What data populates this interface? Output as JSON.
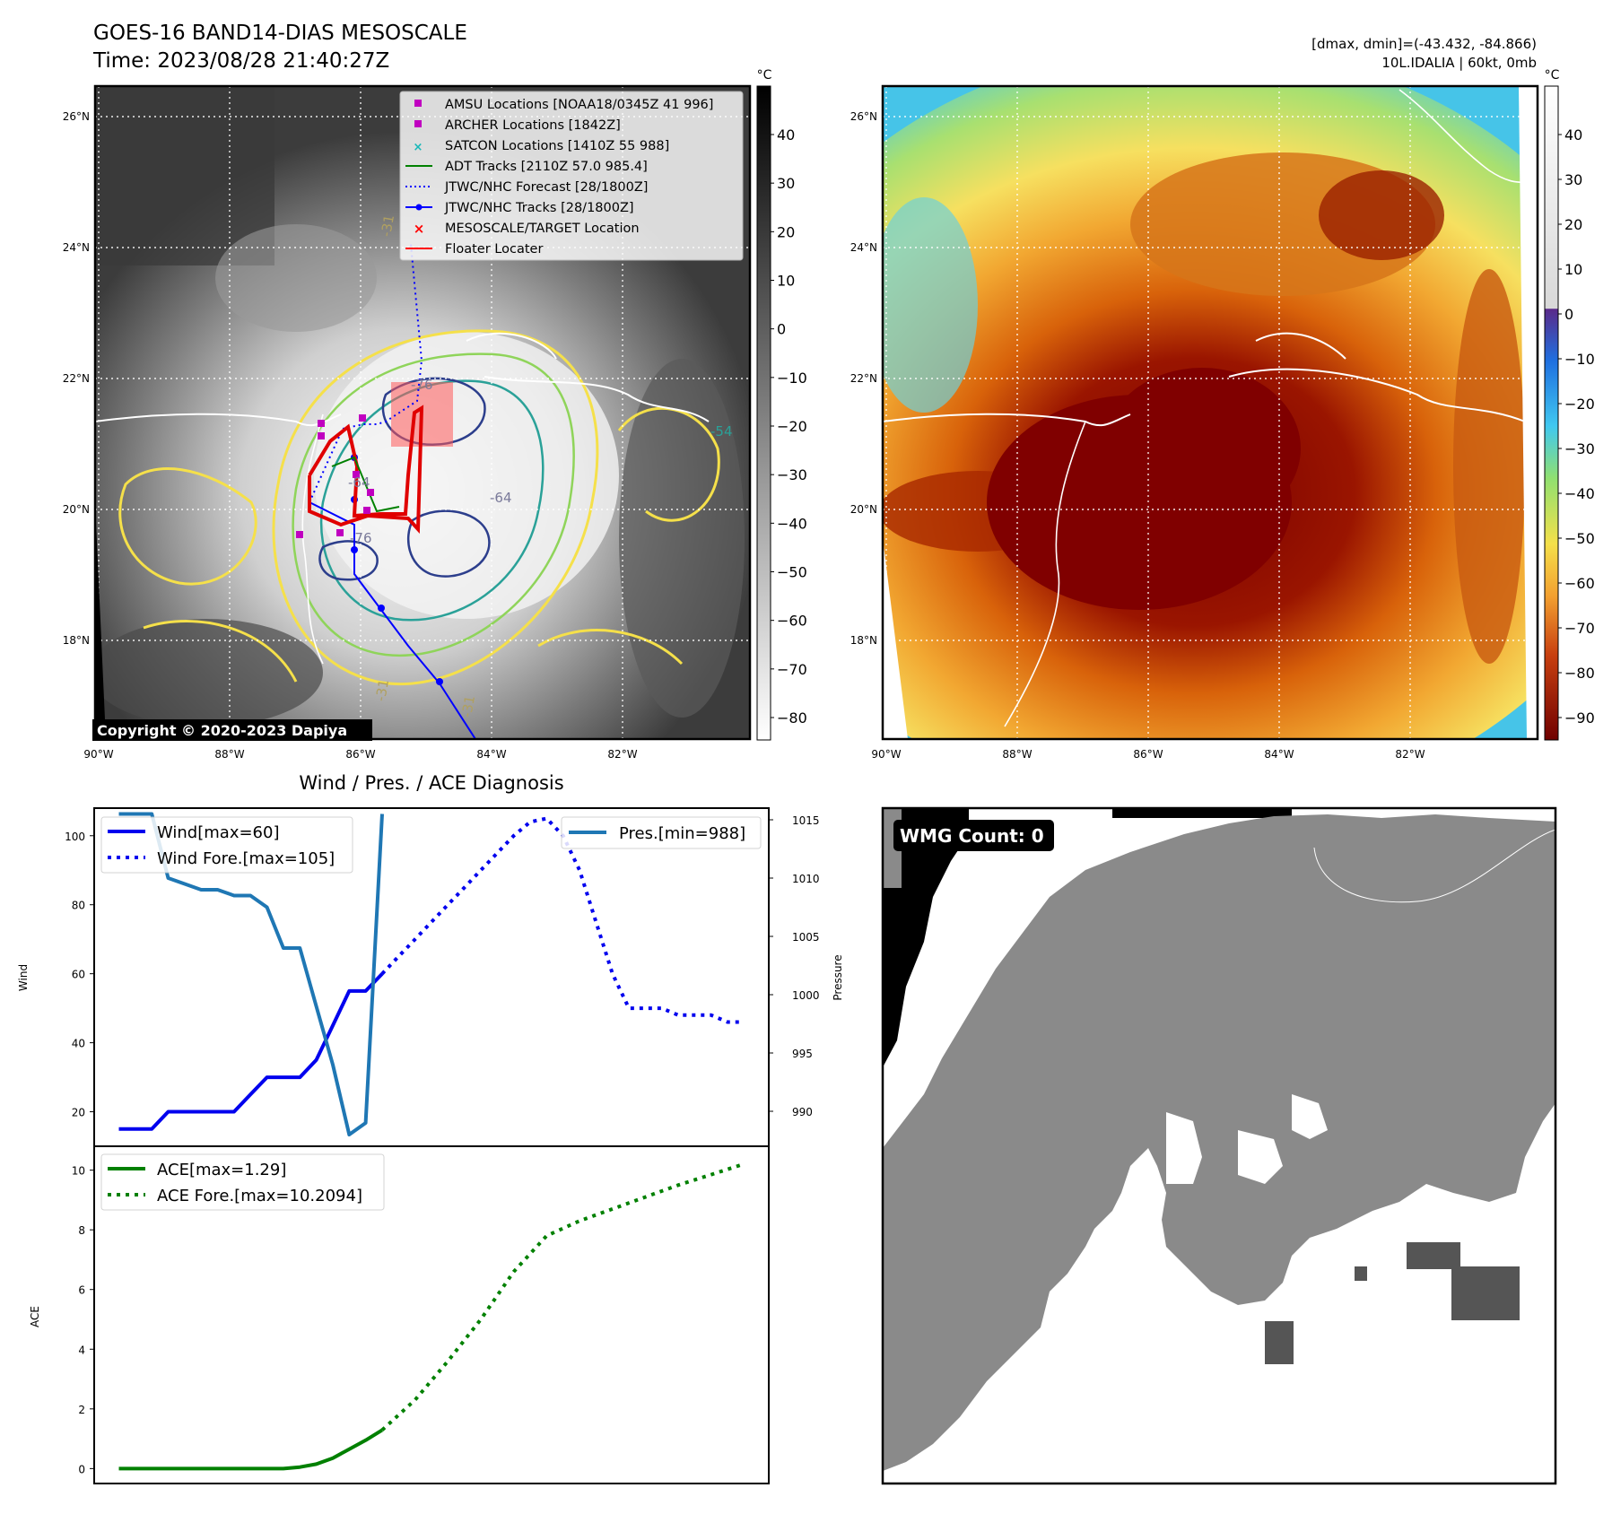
{
  "header": {
    "title": "GOES-16 BAND14-DIAS MESOSCALE",
    "time": "Time: 2023/08/28 21:40:27Z",
    "stats_line1": "[dmax, dmin]=(-43.432, -84.866)",
    "stats_line2": "10L.IDALIA | 60kt, 0mb"
  },
  "map_panel": {
    "copyright": "Copyright © 2020-2023 Dapiya",
    "colorbar_unit": "°C",
    "colorbar_ticks": [
      "40",
      "30",
      "20",
      "10",
      "0",
      "−10",
      "−20",
      "−30",
      "−40",
      "−50",
      "−60",
      "−70",
      "−80"
    ],
    "lat_labels": [
      "26°N",
      "24°N",
      "22°N",
      "20°N",
      "18°N"
    ],
    "lon_labels": [
      "90°W",
      "88°W",
      "86°W",
      "84°W",
      "82°W"
    ],
    "contour_labels": [
      "-76",
      "-54",
      "-64",
      "-76",
      "-64",
      "-31",
      "-31",
      "-31"
    ],
    "legend": [
      {
        "label": "AMSU Locations [NOAA18/0345Z 41 996]",
        "color": "#c000c0"
      },
      {
        "label": "ARCHER Locations [1842Z]",
        "color": "#c000c0"
      },
      {
        "label": "SATCON Locations [1410Z 55 988]",
        "color": "#17b8b8"
      },
      {
        "label": "ADT Tracks [2110Z 57.0 985.4]",
        "color": "#008000"
      },
      {
        "label": "JTWC/NHC Forecast [28/1800Z]",
        "color": "#0000ff"
      },
      {
        "label": "JTWC/NHC Tracks [28/1800Z]",
        "color": "#0000ff"
      },
      {
        "label": "MESOSCALE/TARGET Location",
        "color": "#ff0000"
      },
      {
        "label": "Floater Locater",
        "color": "#ff0000"
      }
    ]
  },
  "enhanced_panel": {
    "colorbar_unit": "°C",
    "colorbar_ticks": [
      "40",
      "30",
      "20",
      "10",
      "0",
      "−10",
      "−20",
      "−30",
      "−40",
      "−50",
      "−60",
      "−70",
      "−80",
      "−90"
    ],
    "lat_labels": [
      "26°N",
      "24°N",
      "22°N",
      "20°N",
      "18°N"
    ],
    "lon_labels": [
      "90°W",
      "88°W",
      "86°W",
      "84°W",
      "82°W"
    ]
  },
  "wmg_panel": {
    "label": "WMG Count: 0"
  },
  "chart_data": [
    {
      "type": "line",
      "title": "Wind / Pres. / ACE Diagnosis",
      "ylabel": "Wind",
      "ylabel_right": "Pressure",
      "ylim": [
        10,
        108
      ],
      "ylim_right": [
        987,
        1016
      ],
      "yticks": [
        20,
        40,
        60,
        80,
        100
      ],
      "yticks_right": [
        990,
        995,
        1000,
        1005,
        1010,
        1015
      ],
      "series": [
        {
          "name": "Wind[max=60]",
          "style": "solid",
          "color": "#0000ee",
          "x": [
            0,
            1,
            2,
            3,
            4,
            5,
            6,
            7,
            8,
            9,
            10,
            11,
            12,
            13,
            14,
            15,
            16
          ],
          "values": [
            15,
            15,
            15,
            20,
            20,
            20,
            20,
            20,
            25,
            30,
            30,
            30,
            35,
            45,
            55,
            55,
            60
          ]
        },
        {
          "name": "Wind Fore.[max=105]",
          "style": "dotted",
          "color": "#0000ee",
          "x": [
            16,
            17,
            18,
            19,
            20,
            21,
            22,
            23,
            24,
            25,
            26,
            27,
            28,
            29,
            30,
            31,
            32,
            33,
            34,
            35,
            36,
            37,
            38
          ],
          "values": [
            60,
            65,
            70,
            75,
            80,
            85,
            90,
            95,
            100,
            104,
            105,
            100,
            90,
            75,
            60,
            50,
            50,
            50,
            48,
            48,
            48,
            46,
            46
          ]
        },
        {
          "name": "Pres.[min=988]",
          "style": "solid",
          "color": "#1f77b4",
          "x": [
            0,
            1,
            2,
            3,
            4,
            5,
            6,
            7,
            8,
            9,
            10,
            11,
            12,
            13,
            14,
            15,
            16
          ],
          "values": [
            1015.5,
            1015.5,
            1015.5,
            1010,
            1009.5,
            1009,
            1009,
            1008.5,
            1008.5,
            1007.5,
            1004,
            1004,
            999,
            994,
            988,
            989,
            1015.5
          ]
        }
      ]
    },
    {
      "type": "line",
      "ylabel": "ACE",
      "ylim": [
        -0.5,
        10.8
      ],
      "yticks": [
        0,
        2,
        4,
        6,
        8,
        10
      ],
      "series": [
        {
          "name": "ACE[max=1.29]",
          "style": "solid",
          "color": "#008000",
          "x": [
            0,
            2,
            4,
            6,
            8,
            10,
            11,
            12,
            13,
            14,
            15,
            16
          ],
          "values": [
            0,
            0,
            0,
            0,
            0,
            0,
            0.05,
            0.15,
            0.35,
            0.65,
            0.95,
            1.29
          ]
        },
        {
          "name": "ACE Fore.[max=10.2094]",
          "style": "dotted",
          "color": "#008000",
          "x": [
            16,
            18,
            20,
            22,
            24,
            26,
            28,
            30,
            32,
            34,
            36,
            38
          ],
          "values": [
            1.29,
            2.3,
            3.6,
            5.0,
            6.6,
            7.8,
            8.3,
            8.7,
            9.1,
            9.5,
            9.85,
            10.2094
          ]
        }
      ]
    }
  ]
}
